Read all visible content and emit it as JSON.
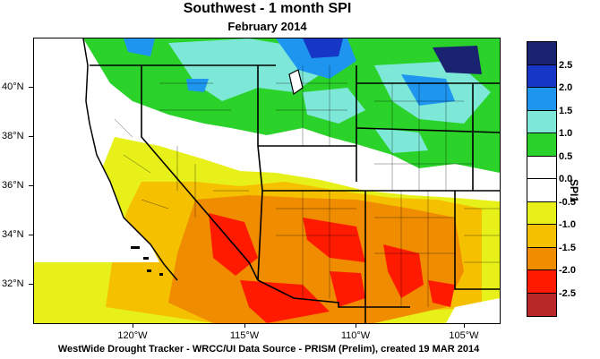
{
  "title": "Southwest - 1 month SPI",
  "subtitle": "February 2014",
  "footer": "WestWide Drought Tracker - WRCC/UI  Data Source - PRISM (Prelim), created 19 MAR 2014",
  "colorbar_label": "SPI1",
  "lat_labels": [
    "40°N",
    "38°N",
    "36°N",
    "34°N",
    "32°N"
  ],
  "lon_labels": [
    "120°W",
    "115°W",
    "110°W",
    "105°W"
  ],
  "legend": {
    "colors": [
      "#1a2370",
      "#1636c8",
      "#1e96f0",
      "#7ee8d8",
      "#2ad22a",
      "#ffffff",
      "#ffffff",
      "#e8f01a",
      "#f5c000",
      "#f08c00",
      "#ff1a00",
      "#b82828"
    ],
    "labels": [
      "2.5",
      "2.0",
      "1.5",
      "1.0",
      "0.5",
      "0.0",
      "-0.5",
      "-1.0",
      "-1.5",
      "-2.0",
      "-2.5"
    ]
  }
}
